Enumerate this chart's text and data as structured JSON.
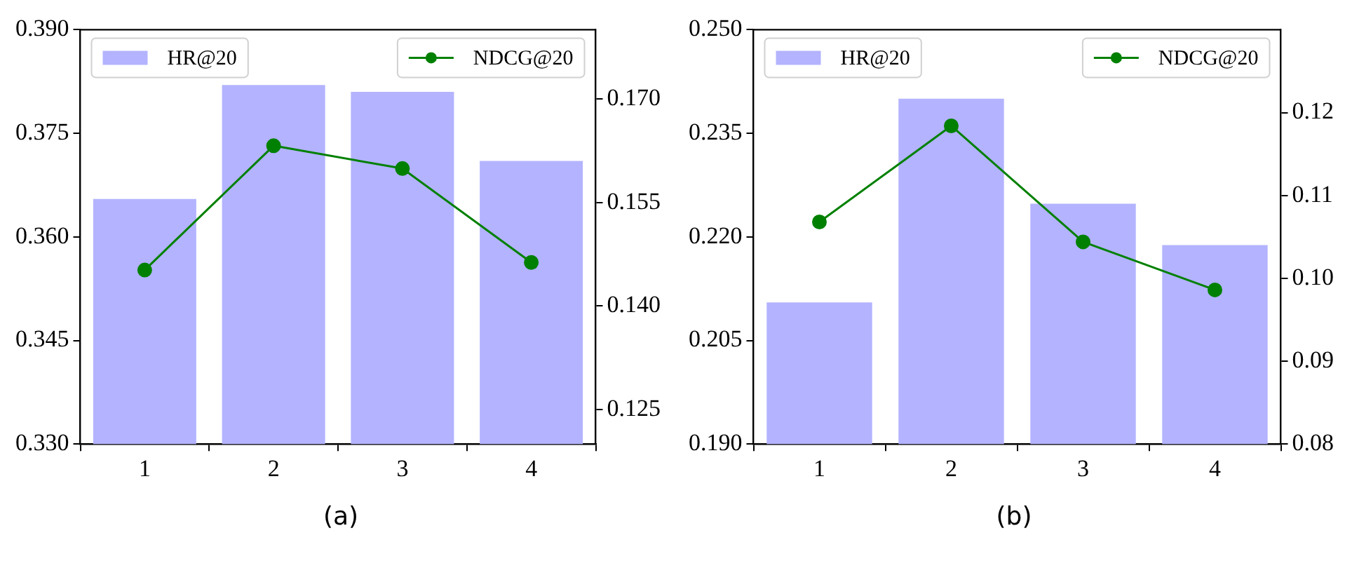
{
  "chart_data": [
    {
      "type": "bar",
      "categories": [
        "1",
        "2",
        "3",
        "4"
      ],
      "series": [
        {
          "name": "HR@20",
          "color": "#b3b3ff",
          "values": [
            0.3655,
            0.382,
            0.381,
            0.371
          ]
        },
        {
          "name": "NDCG@20",
          "type": "line",
          "axis": "y2",
          "color": "#008000",
          "values": [
            0.1452,
            0.1632,
            0.1599,
            0.1463
          ]
        }
      ],
      "ylim": [
        0.33,
        0.39
      ],
      "yticks": [
        {
          "value": 0.33,
          "label": "0.330"
        },
        {
          "value": 0.345,
          "label": "0.345"
        },
        {
          "value": 0.36,
          "label": "0.360"
        },
        {
          "value": 0.375,
          "label": "0.375"
        },
        {
          "value": 0.39,
          "label": "0.390"
        }
      ],
      "y2lim": [
        0.12,
        0.18
      ],
      "y2ticks": [
        {
          "value": 0.125,
          "label": "0.125"
        },
        {
          "value": 0.14,
          "label": "0.140"
        },
        {
          "value": 0.155,
          "label": "0.155"
        },
        {
          "value": 0.17,
          "label": "0.170"
        }
      ],
      "marker": "circle",
      "legend": "top",
      "grid": false,
      "annotations": [
        "(a)"
      ]
    },
    {
      "type": "bar",
      "categories": [
        "1",
        "2",
        "3",
        "4"
      ],
      "series": [
        {
          "name": "HR@20",
          "color": "#b3b3ff",
          "values": [
            0.2105,
            0.24,
            0.2248,
            0.2188
          ]
        },
        {
          "name": "NDCG@20",
          "type": "line",
          "axis": "y2",
          "color": "#008000",
          "values": [
            0.1068,
            0.1184,
            0.1044,
            0.0986
          ]
        }
      ],
      "ylim": [
        0.19,
        0.25
      ],
      "yticks": [
        {
          "value": 0.19,
          "label": "0.190"
        },
        {
          "value": 0.205,
          "label": "0.205"
        },
        {
          "value": 0.22,
          "label": "0.220"
        },
        {
          "value": 0.235,
          "label": "0.235"
        },
        {
          "value": 0.25,
          "label": "0.250"
        }
      ],
      "y2lim": [
        0.08,
        0.13
      ],
      "y2ticks": [
        {
          "value": 0.08,
          "label": "0.08"
        },
        {
          "value": 0.09,
          "label": "0.09"
        },
        {
          "value": 0.1,
          "label": "0.10"
        },
        {
          "value": 0.11,
          "label": "0.11"
        },
        {
          "value": 0.12,
          "label": "0.12"
        }
      ],
      "marker": "circle",
      "legend": "top",
      "grid": false,
      "annotations": [
        "(b)"
      ]
    }
  ]
}
